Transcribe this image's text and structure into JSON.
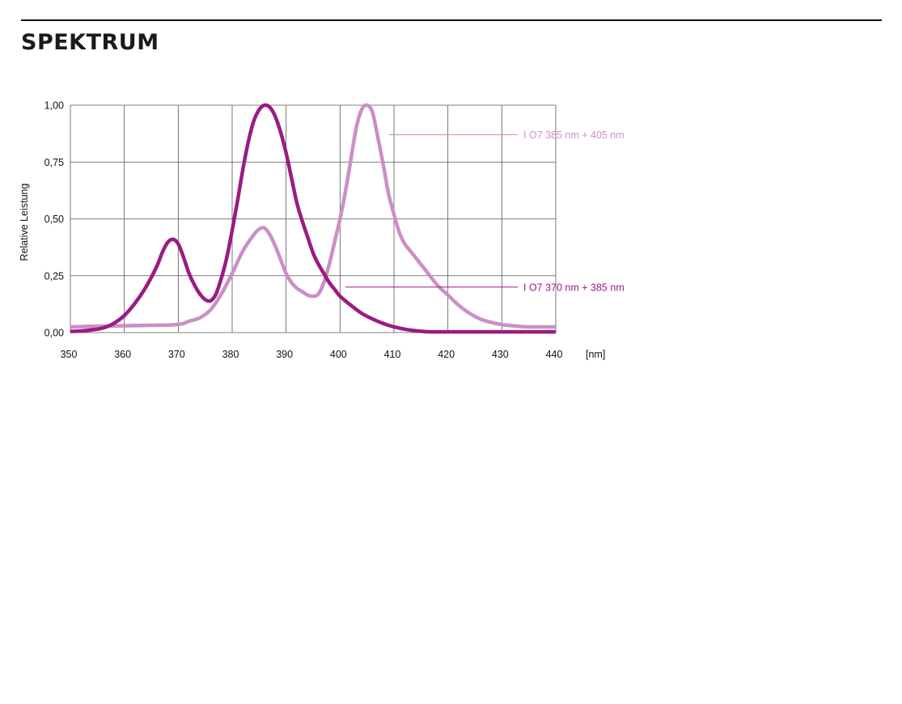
{
  "page": {
    "title": "SPEKTRUM"
  },
  "chart_data": {
    "type": "line",
    "xlabel": "",
    "x_unit": "[nm]",
    "ylabel": "Relative Leistung",
    "xlim": [
      350,
      440
    ],
    "ylim": [
      0,
      1
    ],
    "x_ticks": [
      350,
      360,
      370,
      380,
      390,
      400,
      410,
      420,
      430,
      440
    ],
    "x_tick_labels": [
      "350",
      "360",
      "370",
      "380",
      "390",
      "400",
      "410",
      "420",
      "430",
      "440"
    ],
    "y_ticks": [
      0,
      0.25,
      0.5,
      0.75,
      1
    ],
    "y_tick_labels": [
      "0,00",
      "0,25",
      "0,50",
      "0,75",
      "1,00"
    ],
    "grid": true,
    "series": [
      {
        "name": "I O7 370 nm + 385 nm",
        "color": "#9b1b82",
        "label_anchor": [
          401,
          0.2
        ],
        "x": [
          350,
          352,
          354,
          356,
          358,
          360,
          362,
          364,
          366,
          367,
          368,
          369,
          370,
          371,
          372,
          373,
          374,
          375,
          376,
          377,
          378,
          379,
          380,
          381,
          382,
          383,
          384,
          385,
          386,
          387,
          388,
          389,
          390,
          391,
          392,
          393,
          394,
          395,
          396,
          397,
          398,
          399,
          400,
          402,
          404,
          406,
          408,
          410,
          412,
          414,
          416,
          418,
          420,
          425,
          430,
          435,
          440
        ],
        "y": [
          0.005,
          0.007,
          0.012,
          0.02,
          0.04,
          0.075,
          0.13,
          0.2,
          0.29,
          0.35,
          0.395,
          0.41,
          0.39,
          0.33,
          0.26,
          0.21,
          0.17,
          0.145,
          0.14,
          0.17,
          0.24,
          0.33,
          0.45,
          0.58,
          0.72,
          0.84,
          0.93,
          0.98,
          1.0,
          0.99,
          0.95,
          0.88,
          0.79,
          0.68,
          0.57,
          0.49,
          0.42,
          0.35,
          0.3,
          0.26,
          0.22,
          0.19,
          0.16,
          0.12,
          0.085,
          0.06,
          0.04,
          0.025,
          0.015,
          0.008,
          0.004,
          0.003,
          0.003,
          0.003,
          0.003,
          0.003,
          0.003
        ]
      },
      {
        "name": "I O7 385 nm + 405 nm",
        "color": "#cc8fc4",
        "label_anchor": [
          409,
          0.87
        ],
        "x": [
          350,
          355,
          360,
          365,
          368,
          370,
          371,
          372,
          374,
          376,
          378,
          380,
          382,
          384,
          385,
          386,
          387,
          388,
          389,
          390,
          391,
          392,
          393,
          394,
          395,
          396,
          397,
          398,
          399,
          400,
          401,
          402,
          403,
          404,
          405,
          406,
          407,
          408,
          409,
          410,
          411,
          412,
          413,
          414,
          416,
          418,
          420,
          422,
          424,
          426,
          428,
          430,
          432,
          434,
          436,
          438,
          440
        ],
        "y": [
          0.025,
          0.028,
          0.03,
          0.032,
          0.033,
          0.036,
          0.04,
          0.05,
          0.065,
          0.1,
          0.17,
          0.26,
          0.36,
          0.43,
          0.455,
          0.46,
          0.43,
          0.38,
          0.32,
          0.26,
          0.22,
          0.195,
          0.18,
          0.165,
          0.16,
          0.17,
          0.22,
          0.3,
          0.4,
          0.5,
          0.62,
          0.76,
          0.9,
          0.98,
          1.0,
          0.97,
          0.86,
          0.74,
          0.61,
          0.52,
          0.44,
          0.39,
          0.36,
          0.33,
          0.27,
          0.21,
          0.165,
          0.12,
          0.085,
          0.06,
          0.045,
          0.035,
          0.03,
          0.026,
          0.025,
          0.025,
          0.025
        ]
      }
    ]
  }
}
